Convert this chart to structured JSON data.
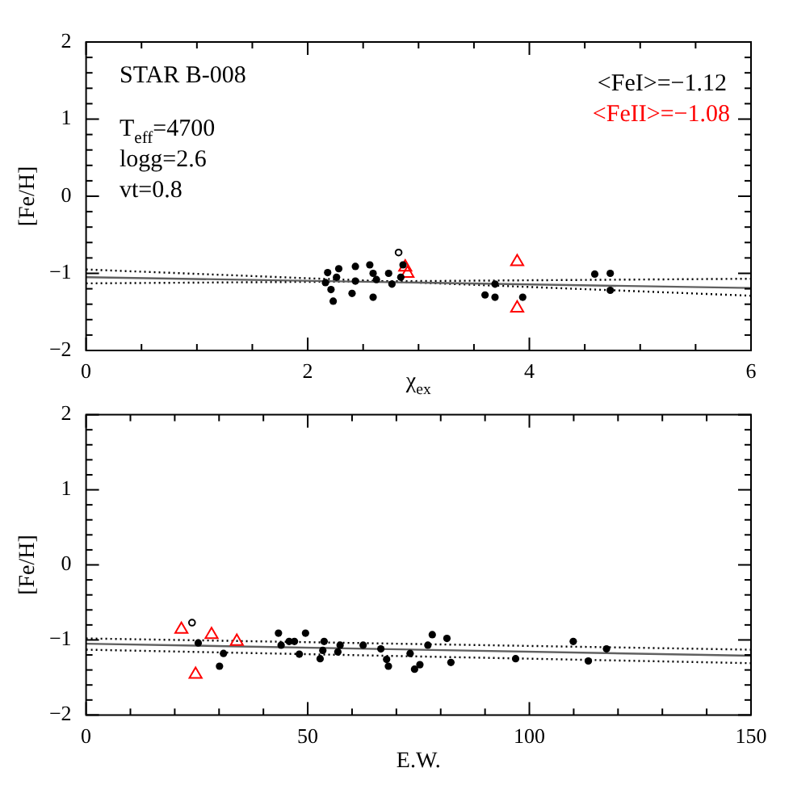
{
  "chart_data": [
    {
      "type": "scatter",
      "xlabel": "χ$_{ex}$",
      "ylabel": "[Fe/H]",
      "annotations": [
        "STAR B-008",
        "T$_{eff}$=4700",
        "logg=2.6",
        "vt=0.8",
        "<FeI>=−1.12",
        "<FeII>=−1.08"
      ],
      "xlim": [
        0,
        6
      ],
      "ylim": [
        -2,
        2
      ],
      "xticks": [
        0,
        {
          "value": 0.5,
          "label": null
        },
        {
          "value": 1,
          "label": null
        },
        {
          "value": 1.5,
          "label": null
        },
        2,
        {
          "value": 2.5,
          "label": null
        },
        {
          "value": 3,
          "label": null
        },
        {
          "value": 3.5,
          "label": null
        },
        4,
        {
          "value": 4.5,
          "label": null
        },
        {
          "value": 5,
          "label": null
        },
        {
          "value": 5.5,
          "label": null
        },
        6
      ],
      "yticks": [
        -2,
        {
          "value": -1.8,
          "label": null
        },
        {
          "value": -1.6,
          "label": null
        },
        {
          "value": -1.4,
          "label": null
        },
        {
          "value": -1.2,
          "label": null
        },
        -1,
        {
          "value": -0.8,
          "label": null
        },
        {
          "value": -0.6,
          "label": null
        },
        {
          "value": -0.4,
          "label": null
        },
        {
          "value": -0.2,
          "label": null
        },
        0,
        {
          "value": 0.2,
          "label": null
        },
        {
          "value": 0.4,
          "label": null
        },
        {
          "value": 0.6,
          "label": null
        },
        {
          "value": 0.8,
          "label": null
        },
        1,
        {
          "value": 1.2,
          "label": null
        },
        {
          "value": 1.4,
          "label": null
        },
        {
          "value": 1.6,
          "label": null
        },
        {
          "value": 1.8,
          "label": null
        },
        2
      ],
      "series": [
        {
          "type": "scatter",
          "color": "#000000",
          "marker": "circle",
          "x": [
            2.18,
            2.28,
            2.16,
            2.26,
            2.21,
            2.23,
            2.4,
            2.43,
            2.43,
            2.56,
            2.59,
            2.62,
            2.59,
            2.73,
            2.76,
            2.84,
            2.86,
            3.6,
            3.69,
            3.69,
            3.94,
            4.59,
            4.73,
            4.73
          ],
          "values": [
            -0.99,
            -0.94,
            -1.12,
            -1.05,
            -1.21,
            -1.36,
            -1.26,
            -0.91,
            -1.1,
            -0.89,
            -1.0,
            -1.08,
            -1.31,
            -1.0,
            -1.14,
            -1.05,
            -0.89,
            -1.28,
            -1.14,
            -1.31,
            -1.31,
            -1.01,
            -1.0,
            -1.22
          ]
        },
        {
          "type": "scatter",
          "color": "#ff0000",
          "marker": "triangle",
          "x": [
            2.88,
            2.9,
            3.89,
            3.89
          ],
          "values": [
            -0.92,
            -1.0,
            -0.85,
            -1.45
          ]
        },
        {
          "type": "scatter",
          "color": "#000000",
          "marker": "circle",
          "x": [
            2.82
          ],
          "values": [
            -0.73
          ]
        },
        {
          "type": "line",
          "color": "#606060",
          "line_style": "solid",
          "x": [
            0,
            6
          ],
          "values": [
            -1.05,
            -1.19
          ]
        },
        {
          "type": "line",
          "color": "#000000",
          "line_style": "dotted",
          "x": [
            0,
            6
          ],
          "values": [
            -0.95,
            -1.29
          ]
        },
        {
          "type": "line",
          "color": "#000000",
          "line_style": "dotted",
          "x": [
            0,
            6
          ],
          "values": [
            -1.13,
            -1.07
          ]
        }
      ]
    },
    {
      "type": "scatter",
      "xlabel": "E.W.",
      "ylabel": "[Fe/H]",
      "xlim": [
        0,
        150
      ],
      "ylim": [
        -2,
        2
      ],
      "xticks": [
        0,
        {
          "value": 10,
          "label": null
        },
        {
          "value": 20,
          "label": null
        },
        {
          "value": 30,
          "label": null
        },
        {
          "value": 40,
          "label": null
        },
        50,
        {
          "value": 60,
          "label": null
        },
        {
          "value": 70,
          "label": null
        },
        {
          "value": 80,
          "label": null
        },
        {
          "value": 90,
          "label": null
        },
        100,
        {
          "value": 110,
          "label": null
        },
        {
          "value": 120,
          "label": null
        },
        {
          "value": 130,
          "label": null
        },
        {
          "value": 140,
          "label": null
        },
        150
      ],
      "yticks": [
        -2,
        {
          "value": -1.8,
          "label": null
        },
        {
          "value": -1.6,
          "label": null
        },
        {
          "value": -1.4,
          "label": null
        },
        {
          "value": -1.2,
          "label": null
        },
        -1,
        {
          "value": -0.8,
          "label": null
        },
        {
          "value": -0.6,
          "label": null
        },
        {
          "value": -0.4,
          "label": null
        },
        {
          "value": -0.2,
          "label": null
        },
        0,
        {
          "value": 0.2,
          "label": null
        },
        {
          "value": 0.4,
          "label": null
        },
        {
          "value": 0.6,
          "label": null
        },
        {
          "value": 0.8,
          "label": null
        },
        1,
        {
          "value": 1.2,
          "label": null
        },
        {
          "value": 1.4,
          "label": null
        },
        {
          "value": 1.6,
          "label": null
        },
        {
          "value": 1.8,
          "label": null
        },
        2
      ],
      "series": [
        {
          "type": "scatter",
          "color": "#000000",
          "marker": "circle",
          "x": [
            25.3,
            30.1,
            31.0,
            43.4,
            44.0,
            45.8,
            47.0,
            48.1,
            49.5,
            52.8,
            53.4,
            53.7,
            56.8,
            57.3,
            62.5,
            66.5,
            67.8,
            68.2,
            73.1,
            74.1,
            75.3,
            77.1,
            78.1,
            81.4,
            82.3,
            96.9,
            109.9,
            113.3,
            117.4
          ],
          "values": [
            -1.04,
            -1.35,
            -1.18,
            -0.91,
            -1.07,
            -1.02,
            -1.02,
            -1.19,
            -0.91,
            -1.25,
            -1.14,
            -1.02,
            -1.16,
            -1.07,
            -1.07,
            -1.12,
            -1.26,
            -1.35,
            -1.18,
            -1.39,
            -1.33,
            -1.07,
            -0.93,
            -0.98,
            -1.3,
            -1.25,
            -1.02,
            -1.28,
            -1.12
          ]
        },
        {
          "type": "scatter",
          "color": "#ff0000",
          "marker": "triangle",
          "x": [
            21.5,
            28.3,
            34.0,
            24.7
          ],
          "values": [
            -0.86,
            -0.93,
            -1.02,
            -1.46
          ]
        },
        {
          "type": "scatter",
          "color": "#000000",
          "marker": "circle",
          "x": [
            23.9
          ],
          "values": [
            -0.77
          ]
        },
        {
          "type": "line",
          "color": "#606060",
          "line_style": "solid",
          "x": [
            0,
            150
          ],
          "values": [
            -1.05,
            -1.21
          ]
        },
        {
          "type": "line",
          "color": "#000000",
          "line_style": "dotted",
          "x": [
            0,
            150
          ],
          "values": [
            -0.98,
            -1.13
          ]
        },
        {
          "type": "line",
          "color": "#000000",
          "line_style": "dotted",
          "x": [
            0,
            150
          ],
          "values": [
            -1.13,
            -1.31
          ]
        }
      ]
    }
  ]
}
